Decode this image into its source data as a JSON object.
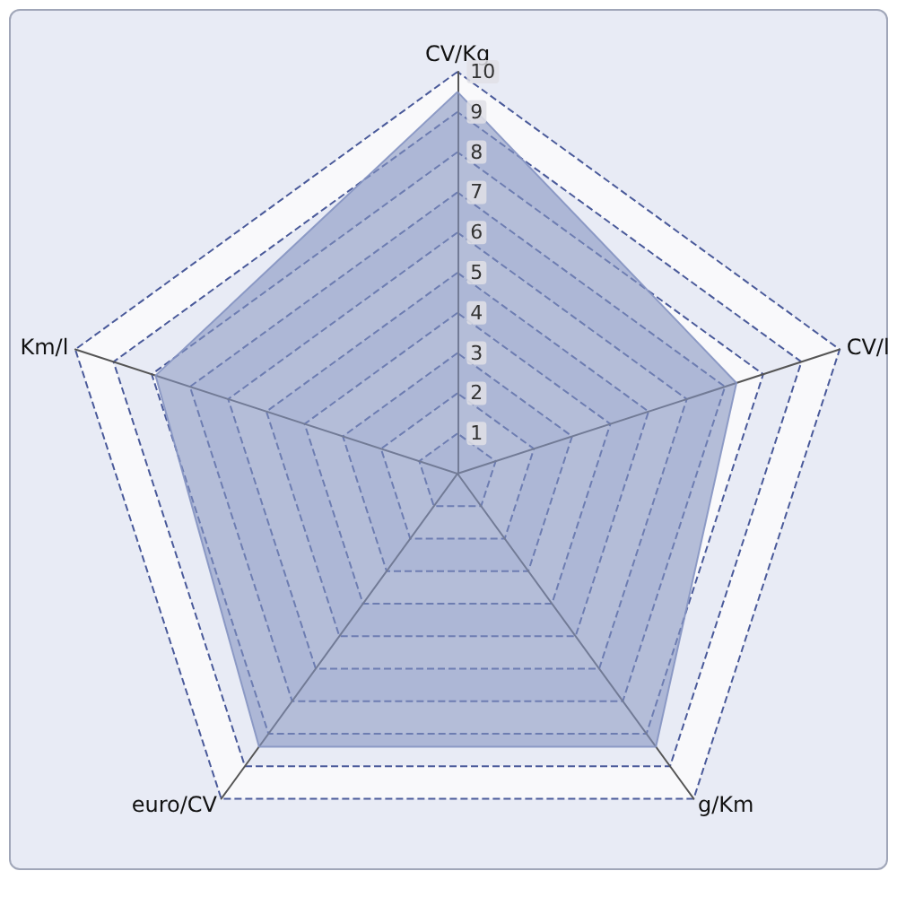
{
  "chart_data": {
    "type": "radar",
    "categories": [
      "CV/Kg",
      "CV/l",
      "g/Km",
      "euro/CV",
      "Km/l"
    ],
    "series": [
      {
        "color": "#8594c2",
        "values": [
          9.5,
          7.3,
          8.4,
          8.4,
          7.9
        ]
      }
    ],
    "ylim": [
      0,
      10
    ],
    "yticks": [
      1,
      2,
      3,
      4,
      5,
      6,
      7,
      8,
      9,
      10
    ],
    "grid": true,
    "marker": "none",
    "line_style": "dashed"
  }
}
